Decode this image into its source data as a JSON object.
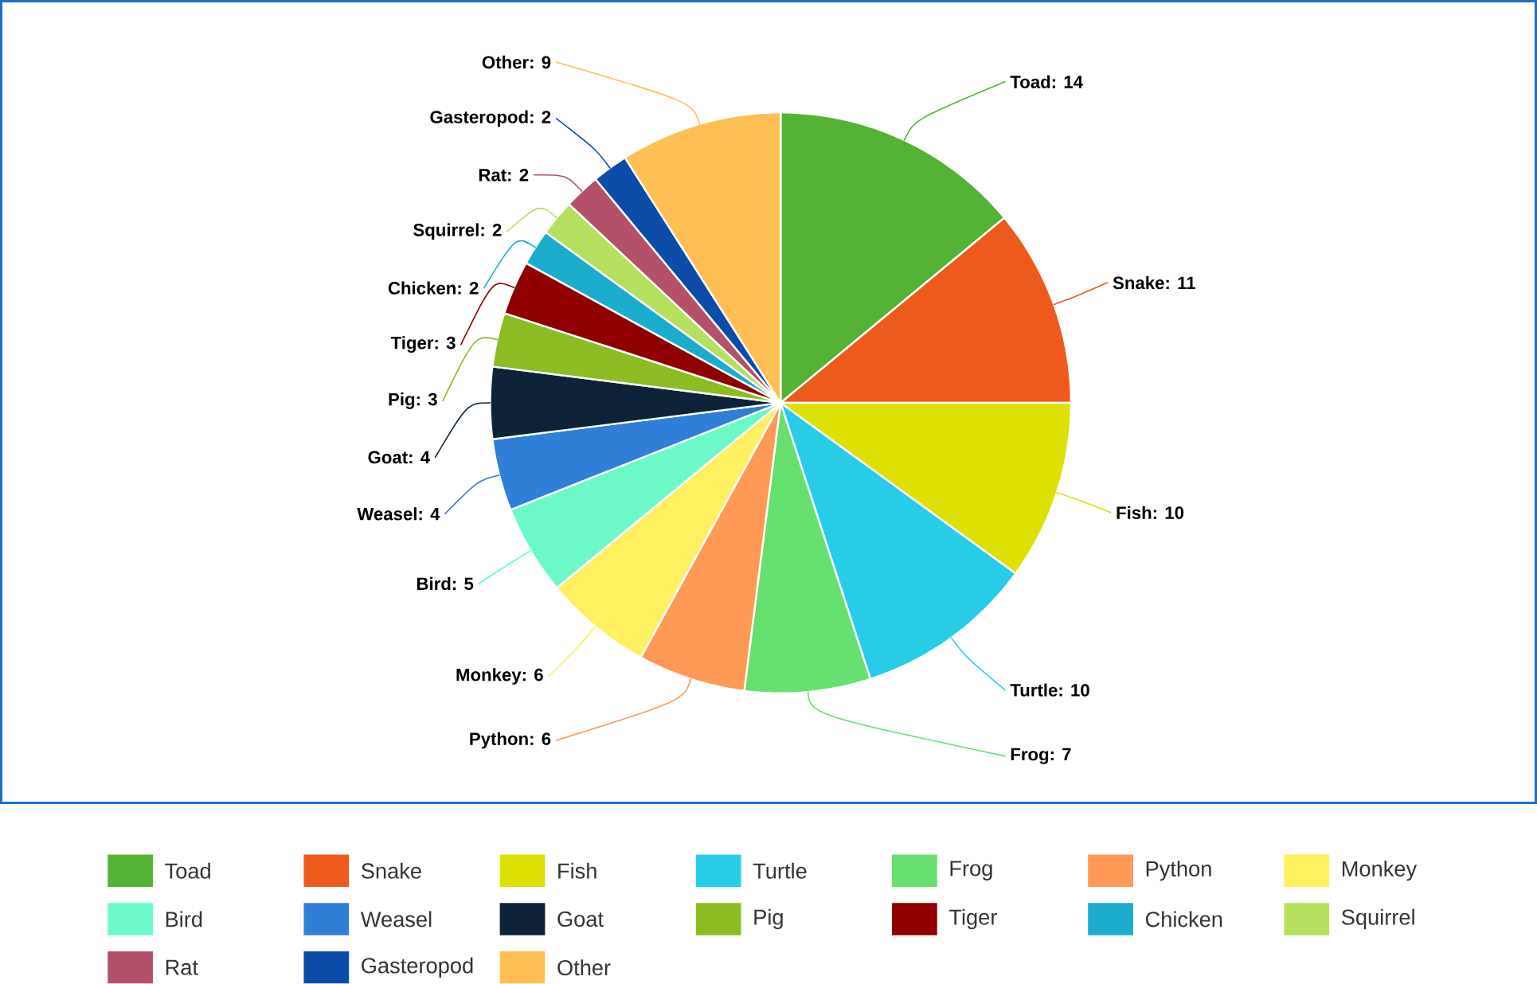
{
  "chart_data": {
    "type": "pie",
    "categories": [
      "Toad",
      "Snake",
      "Fish",
      "Turtle",
      "Frog",
      "Python",
      "Monkey",
      "Bird",
      "Weasel",
      "Goat",
      "Pig",
      "Tiger",
      "Chicken",
      "Squirrel",
      "Rat",
      "Gasteropod",
      "Other"
    ],
    "values": [
      14,
      11,
      10,
      10,
      7,
      6,
      6,
      5,
      4,
      4,
      3,
      3,
      2,
      2,
      2,
      2,
      9
    ],
    "colors": [
      "#52b334",
      "#ee5a1c",
      "#dde000",
      "#27cce6",
      "#66e06e",
      "#ff9955",
      "#fff060",
      "#6cf9c8",
      "#2f7ed8",
      "#0d233a",
      "#8bbc21",
      "#910000",
      "#1aadce",
      "#b5e05e",
      "#b5506b",
      "#0a4ca8",
      "#ffbf55"
    ],
    "value_labels": [
      "Toad: 14",
      "Snake: 11",
      "Fish: 10",
      "Turtle: 10",
      "Frog: 7",
      "Python: 6",
      "Monkey: 6",
      "Bird: 5",
      "Weasel: 4",
      "Goat: 4",
      "Pig: 3",
      "Tiger: 3",
      "Chicken: 2",
      "Squirrel: 2",
      "Rat: 2",
      "Gasteropod: 2",
      "Other: 9"
    ],
    "legend": "bottom"
  }
}
